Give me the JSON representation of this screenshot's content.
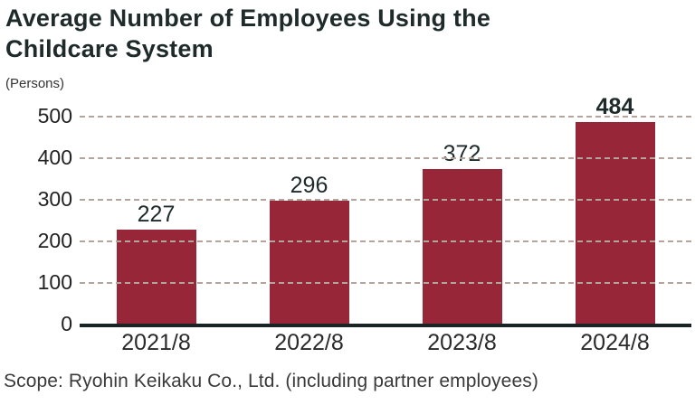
{
  "title_lines": [
    "Average Number of Employees Using the",
    "Childcare System"
  ],
  "y_axis_unit": "(Persons)",
  "footer": "Scope: Ryohin Keikaku Co., Ltd. (including partner employees)",
  "colors": {
    "bar": "#982639",
    "gridline": "#b3a49c",
    "axis_line": "#1b2424",
    "title_text": "#1f2a2b",
    "body_text": "#333333"
  },
  "chart_data": {
    "type": "bar",
    "title": "Average Number of Employees Using the Childcare System",
    "categories": [
      "2021/8",
      "2022/8",
      "2023/8",
      "2024/8"
    ],
    "values": [
      227,
      296,
      372,
      484
    ],
    "xlabel": "",
    "ylabel": "(Persons)",
    "ylim": [
      0,
      500
    ],
    "yticks": [
      0,
      100,
      200,
      300,
      400,
      500
    ],
    "grid": "horizontal-dashed",
    "legend": "none",
    "data_labels": true,
    "emphasized_value_index": 3
  }
}
